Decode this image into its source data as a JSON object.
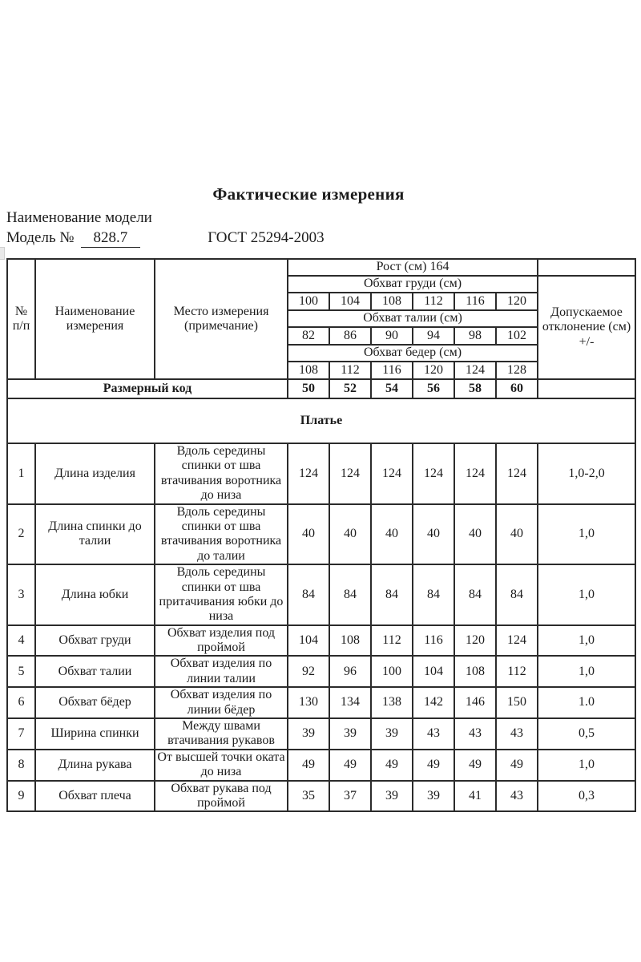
{
  "header": {
    "title": "Фактические измерения",
    "model_name_label": "Наименование модели",
    "model_no_label": "Модель №",
    "model_no_value": "828.7",
    "gost": "ГОСТ 25294-2003"
  },
  "table": {
    "col_headers": {
      "num": "№ п/п",
      "name": "Наименование измерения",
      "place": "Место измерения (примечание)",
      "height": "Рост (см) 164",
      "chest": "Обхват груди (см)",
      "chest_sizes": [
        "100",
        "104",
        "108",
        "112",
        "116",
        "120"
      ],
      "waist": "Обхват талии (см)",
      "waist_sizes": [
        "82",
        "86",
        "90",
        "94",
        "98",
        "102"
      ],
      "hips": "Обхват бедер (см)",
      "hip_sizes": [
        "108",
        "112",
        "116",
        "120",
        "124",
        "128"
      ],
      "tolerance": "Допускаемое отклонение (см) +/-",
      "size_code_label": "Размерный код",
      "size_codes": [
        "50",
        "52",
        "54",
        "56",
        "58",
        "60"
      ]
    },
    "section": "Платье",
    "rows": [
      {
        "num": "1",
        "name": "Длина изделия",
        "place": "Вдоль середины спинки от шва втачивания воротника до низа",
        "values": [
          "124",
          "124",
          "124",
          "124",
          "124",
          "124"
        ],
        "tolerance": "1,0-2,0",
        "tall": true
      },
      {
        "num": "2",
        "name": "Длина спинки до талии",
        "place": "Вдоль середины спинки от шва втачивания воротника до талии",
        "values": [
          "40",
          "40",
          "40",
          "40",
          "40",
          "40"
        ],
        "tolerance": "1,0",
        "tall": true
      },
      {
        "num": "3",
        "name": "Длина юбки",
        "place": "Вдоль середины спинки от шва притачивания юбки до низа",
        "values": [
          "84",
          "84",
          "84",
          "84",
          "84",
          "84"
        ],
        "tolerance": "1,0",
        "tall": true
      },
      {
        "num": "4",
        "name": "Обхват груди",
        "place": "Обхват изделия под проймой",
        "values": [
          "104",
          "108",
          "112",
          "116",
          "120",
          "124"
        ],
        "tolerance": "1,0",
        "tall": false
      },
      {
        "num": "5",
        "name": "Обхват талии",
        "place": "Обхват изделия по линии талии",
        "values": [
          "92",
          "96",
          "100",
          "104",
          "108",
          "112"
        ],
        "tolerance": "1,0",
        "tall": false
      },
      {
        "num": "6",
        "name": "Обхват бёдер",
        "place": "Обхват изделия по линии бёдер",
        "values": [
          "130",
          "134",
          "138",
          "142",
          "146",
          "150"
        ],
        "tolerance": "1.0",
        "tall": false
      },
      {
        "num": "7",
        "name": "Ширина спинки",
        "place": "Между швами втачивания рукавов",
        "values": [
          "39",
          "39",
          "39",
          "43",
          "43",
          "43"
        ],
        "tolerance": "0,5",
        "tall": false
      },
      {
        "num": "8",
        "name": "Длина рукава",
        "place": "От высшей точки оката до низа",
        "values": [
          "49",
          "49",
          "49",
          "49",
          "49",
          "49"
        ],
        "tolerance": "1,0",
        "tall": false
      },
      {
        "num": "9",
        "name": "Обхват плеча",
        "place": "Обхват рукава под проймой",
        "values": [
          "35",
          "37",
          "39",
          "39",
          "41",
          "43"
        ],
        "tolerance": "0,3",
        "tall": false
      }
    ]
  }
}
